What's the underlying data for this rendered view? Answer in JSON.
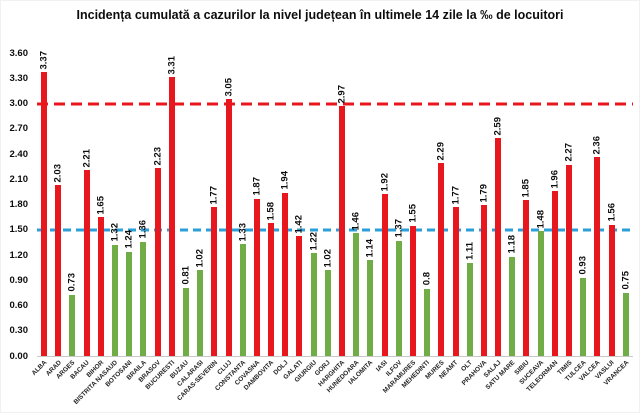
{
  "title": "Incidența cumulată a cazurilor la nivel județean în ultimele 14 zile la ‰ de locuitori",
  "chart_data": {
    "type": "bar",
    "title": "Incidența cumulată a cazurilor la nivel județean în ultimele 14 zile la ‰ de locuitori",
    "xlabel": "",
    "ylabel": "",
    "ylim": [
      0,
      3.6
    ],
    "ytick_step": 0.3,
    "ytick_labels": [
      "0.00",
      "0.30",
      "0.60",
      "0.90",
      "1.20",
      "1.50",
      "1.80",
      "2.10",
      "2.40",
      "2.70",
      "3.00",
      "3.30",
      "3.60"
    ],
    "grid": false,
    "legend": "none",
    "categories": [
      "ALBA",
      "ARAD",
      "ARGES",
      "BACAU",
      "BIHOR",
      "BISTRITA NASAUD",
      "BOTOSANI",
      "BRAILA",
      "BRASOV",
      "BUCURESTI",
      "BUZAU",
      "CALARASI",
      "CARAS-SEVERIN",
      "CLUJ",
      "CONSTANTA",
      "COVASNA",
      "DAMBOVITA",
      "DOLJ",
      "GALATI",
      "GIURGIU",
      "GORJ",
      "HARGHITA",
      "HUNEDOARA",
      "IALOMITA",
      "IASI",
      "ILFOV",
      "MARAMURES",
      "MEHEDINTI",
      "MURES",
      "NEAMT",
      "OLT",
      "PRAHOVA",
      "SALAJ",
      "SATU MARE",
      "SIBIU",
      "SUCEAVA",
      "TELEORMAN",
      "TIMIS",
      "TULCEA",
      "VALCEA",
      "VASLUI",
      "VRANCEA"
    ],
    "values": [
      3.37,
      2.03,
      0.73,
      2.21,
      1.65,
      1.32,
      1.24,
      1.36,
      2.23,
      3.31,
      0.81,
      1.02,
      1.77,
      3.05,
      1.33,
      1.87,
      1.58,
      1.94,
      1.42,
      1.22,
      1.02,
      2.97,
      1.46,
      1.14,
      1.92,
      1.37,
      1.55,
      0.8,
      2.29,
      1.77,
      1.11,
      1.79,
      2.59,
      1.18,
      1.85,
      1.48,
      1.96,
      2.27,
      0.93,
      2.36,
      1.56,
      0.75
    ],
    "value_labels": [
      "3.37",
      "2.03",
      "0.73",
      "2.21",
      "1.65",
      "1.32",
      "1.24",
      "1.36",
      "2.23",
      "3.31",
      "0.81",
      "1.02",
      "1.77",
      "3.05",
      "1.33",
      "1.87",
      "1.58",
      "1.94",
      "1.42",
      "1.22",
      "1.02",
      "2.97",
      "1.46",
      "1.14",
      "1.92",
      "1.37",
      "1.55",
      "0.8",
      "2.29",
      "1.77",
      "1.11",
      "1.79",
      "2.59",
      "1.18",
      "1.85",
      "1.48",
      "1.96",
      "2.27",
      "0.93",
      "2.36",
      "1.56",
      "0.75"
    ],
    "bar_colors": [
      "red",
      "red",
      "green",
      "red",
      "red",
      "green",
      "green",
      "green",
      "red",
      "red",
      "green",
      "green",
      "red",
      "red",
      "green",
      "red",
      "red",
      "red",
      "red",
      "green",
      "green",
      "red",
      "green",
      "green",
      "red",
      "green",
      "red",
      "green",
      "red",
      "red",
      "green",
      "red",
      "red",
      "green",
      "red",
      "green",
      "red",
      "red",
      "green",
      "red",
      "red",
      "green"
    ],
    "reference_lines": [
      {
        "value": 3.0,
        "color": "#e8161d",
        "style": "dashed",
        "dash": 11,
        "gap": 6
      },
      {
        "value": 1.5,
        "color": "#2b9fd8",
        "style": "dashed",
        "dash": 8,
        "gap": 5
      }
    ],
    "colors": {
      "red_bar": "#e8161d",
      "green_bar": "#70ad47",
      "axis_line": "#c9c9c9",
      "text": "#0d0d0d"
    }
  }
}
